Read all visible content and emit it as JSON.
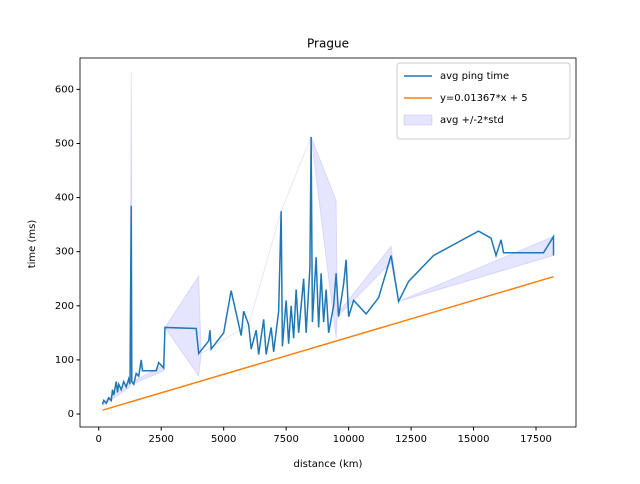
{
  "chart_data": {
    "type": "line",
    "title": "Prague",
    "xlabel": "distance (km)",
    "ylabel": "time (ms)",
    "xlim": [
      -750,
      19100
    ],
    "ylim": [
      -24,
      658
    ],
    "xticks": [
      0,
      2500,
      5000,
      7500,
      10000,
      12500,
      15000,
      17500
    ],
    "yticks": [
      0,
      100,
      200,
      300,
      400,
      500,
      600
    ],
    "grid": false,
    "legend": "upper right",
    "series": [
      {
        "name": "avg ping time",
        "color": "#1f77b4",
        "x": [
          150,
          200,
          300,
          400,
          500,
          550,
          600,
          700,
          750,
          800,
          900,
          1000,
          1100,
          1200,
          1250,
          1300,
          1320,
          1400,
          1500,
          1600,
          1700,
          1750,
          2000,
          2300,
          2400,
          2600,
          2650,
          3900,
          4000,
          4400,
          4450,
          4500,
          5000,
          5300,
          5700,
          5800,
          6000,
          6100,
          6300,
          6400,
          6600,
          6700,
          6900,
          7000,
          7200,
          7300,
          7350,
          7500,
          7600,
          7700,
          7800,
          7900,
          8000,
          8200,
          8300,
          8450,
          8500,
          8550,
          8700,
          8800,
          8900,
          9000,
          9100,
          9200,
          9400,
          9500,
          9600,
          9800,
          9900,
          10000,
          10200,
          10700,
          11200,
          11700,
          12000,
          12400,
          13400,
          15200,
          15700,
          15900,
          16100,
          16200,
          17800,
          18200,
          18200
        ],
        "values": [
          18,
          25,
          20,
          30,
          25,
          45,
          35,
          60,
          40,
          55,
          45,
          60,
          50,
          65,
          55,
          385,
          60,
          55,
          75,
          70,
          100,
          80,
          80,
          80,
          95,
          85,
          160,
          158,
          112,
          135,
          155,
          120,
          150,
          228,
          145,
          190,
          165,
          120,
          155,
          110,
          175,
          110,
          160,
          115,
          190,
          375,
          125,
          210,
          130,
          200,
          140,
          230,
          150,
          250,
          150,
          270,
          512,
          170,
          290,
          160,
          260,
          170,
          230,
          150,
          200,
          260,
          180,
          240,
          285,
          180,
          210,
          185,
          215,
          293,
          208,
          245,
          293,
          338,
          325,
          293,
          322,
          298,
          298,
          328,
          293
        ]
      },
      {
        "name": "y=0.01367*x + 5",
        "color": "#ff7f0e",
        "x": [
          150,
          18200
        ],
        "values": [
          7.05,
          253.79
        ]
      }
    ],
    "band": {
      "type": "fill_between",
      "name": "avg +/-2*std",
      "color": "#0000ff",
      "x": [
        150,
        1250,
        1300,
        1350,
        2600,
        2650,
        4000,
        4100,
        6000,
        7300,
        8500,
        9500,
        9550,
        11700,
        12000,
        18200
      ],
      "lower": [
        15,
        50,
        140,
        55,
        80,
        160,
        70,
        112,
        165,
        375,
        512,
        140,
        180,
        280,
        208,
        293
      ],
      "upper": [
        22,
        60,
        632,
        60,
        90,
        160,
        255,
        112,
        165,
        375,
        512,
        395,
        185,
        310,
        208,
        328
      ]
    }
  }
}
